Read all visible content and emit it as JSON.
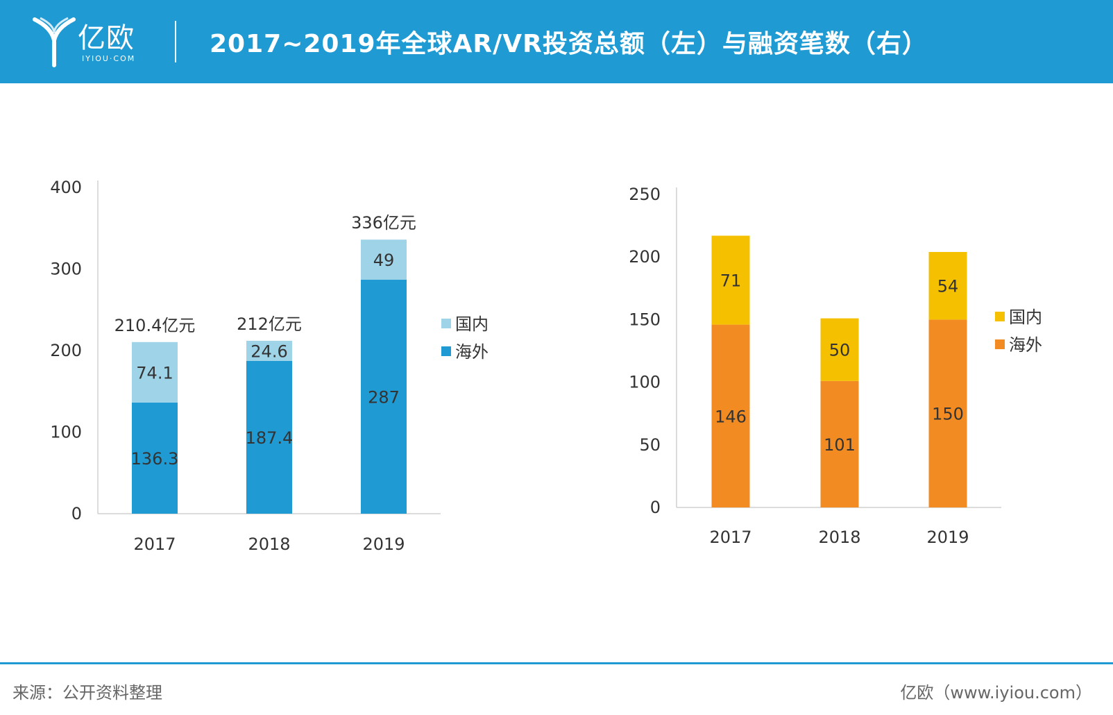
{
  "header": {
    "logo_text": "亿欧",
    "logo_sub": "IYIOU·COM",
    "title": "2017~2019年全球AR/VR投资总额（左）与融资笔数（右）",
    "bg_color": "#1f9ad3"
  },
  "footer": {
    "source": "来源：公开资料整理",
    "brand": "亿欧（www.iyiou.com）"
  },
  "chart_data": [
    {
      "type": "bar",
      "stacked": true,
      "categories": [
        "2017",
        "2018",
        "2019"
      ],
      "series": [
        {
          "name": "海外",
          "values": [
            136.3,
            187.4,
            287
          ],
          "color": "#1f9ad3",
          "labels": [
            "136.3",
            "187.4",
            "287"
          ]
        },
        {
          "name": "国内",
          "values": [
            74.1,
            24.6,
            49
          ],
          "color": "#9fd3e8",
          "labels": [
            "74.1",
            "24.6",
            "49"
          ]
        }
      ],
      "totals": [
        "210.4亿元",
        "212亿元",
        "336亿元"
      ],
      "yticks": [
        "0",
        "100",
        "200",
        "300",
        "400"
      ],
      "ylim": [
        0,
        400
      ],
      "legend": "right",
      "legend_order": [
        "国内",
        "海外"
      ],
      "grid": false
    },
    {
      "type": "bar",
      "stacked": true,
      "categories": [
        "2017",
        "2018",
        "2019"
      ],
      "series": [
        {
          "name": "海外",
          "values": [
            146,
            101,
            150
          ],
          "color": "#f28c22",
          "labels": [
            "146",
            "101",
            "150"
          ]
        },
        {
          "name": "国内",
          "values": [
            71,
            50,
            54
          ],
          "color": "#f5c000",
          "labels": [
            "71",
            "50",
            "54"
          ]
        }
      ],
      "yticks": [
        "0",
        "50",
        "100",
        "150",
        "200",
        "250"
      ],
      "ylim": [
        0,
        250
      ],
      "legend": "right",
      "legend_order": [
        "国内",
        "海外"
      ],
      "grid": false
    }
  ]
}
